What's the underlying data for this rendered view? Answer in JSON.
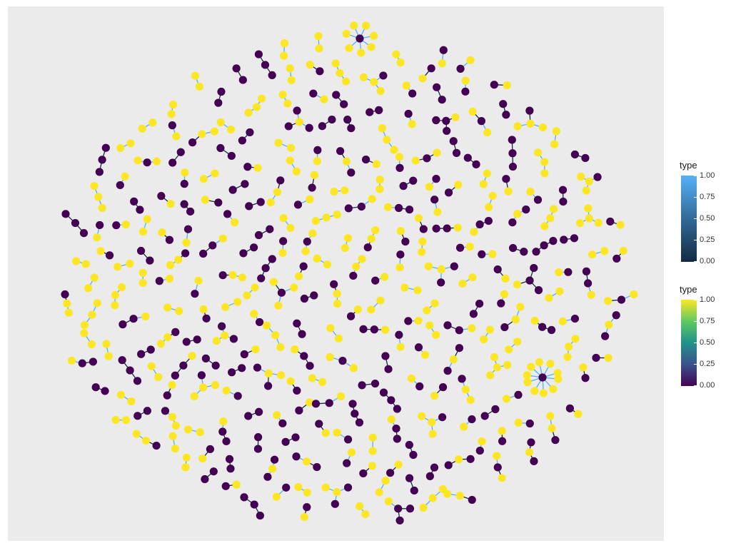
{
  "colors": {
    "panel_background": "#ebebeb",
    "node_type_0": "#440154",
    "node_type_1": "#fde725",
    "edge_type_0": "#132b43",
    "edge_type_1": "#56b1f7"
  },
  "legends": [
    {
      "title": "type",
      "kind": "edge-colour",
      "gradient": [
        "#56b1f7",
        "#336a98",
        "#132b43"
      ],
      "ticks": [
        "1.00",
        "0.75",
        "0.50",
        "0.25",
        "0.00"
      ]
    },
    {
      "title": "type",
      "kind": "node-colour",
      "gradient": [
        "#fde725",
        "#5ec962",
        "#21918c",
        "#3b528b",
        "#440154"
      ],
      "ticks": [
        "1.00",
        "0.75",
        "0.50",
        "0.25",
        "0.00"
      ]
    }
  ],
  "graph": {
    "node_type_values": [
      0,
      1
    ],
    "edge_type_values": [
      0,
      1
    ]
  }
}
